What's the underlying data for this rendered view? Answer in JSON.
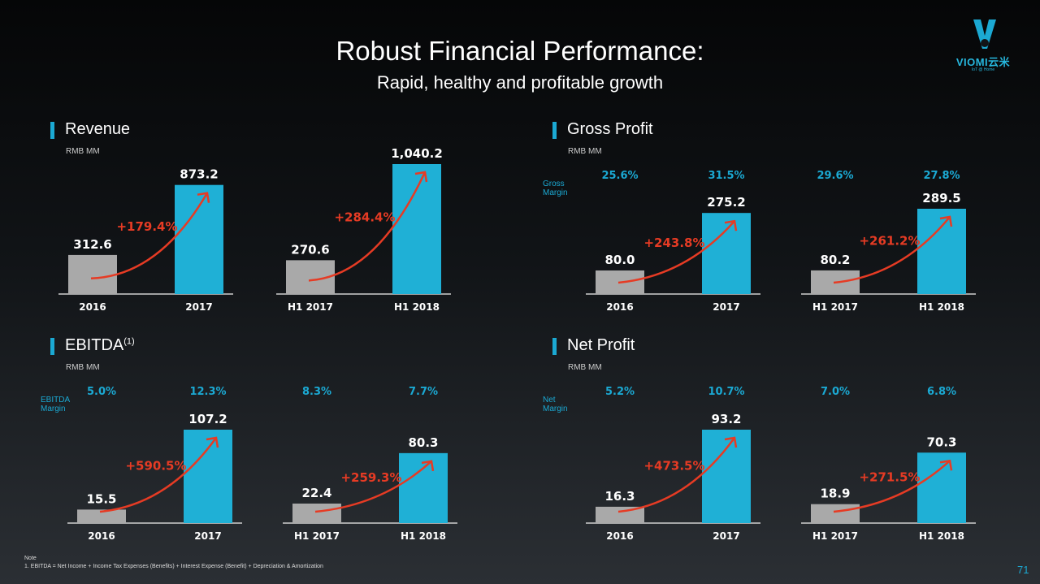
{
  "title": "Robust Financial Performance:",
  "subtitle": "Rapid, healthy and profitable growth",
  "logo": {
    "text": "VIOMI云米",
    "tagline": "IoT @ Home"
  },
  "note": {
    "heading": "Note",
    "text": "1. EBITDA = Net Income + Income Tax Expenses (Benefits) + Interest Expense (Benefit) + Depreciation & Amortization"
  },
  "page_number": "71",
  "colors": {
    "accent": "#1ba9d3",
    "bar_prior": "#a9a9a9",
    "bar_current": "#1fb0d6",
    "growth": "#e63b24"
  },
  "chart_data": [
    {
      "type": "bar",
      "title": "Revenue",
      "title_sup": "",
      "unit": "RMB MM",
      "margin_label": "",
      "margins": [],
      "groups": [
        {
          "categories": [
            "2016",
            "2017"
          ],
          "values": [
            312.6,
            873.2
          ],
          "labels": [
            "312.6",
            "873.2"
          ],
          "growth": "+179.4%"
        },
        {
          "categories": [
            "H1 2017",
            "H1 2018"
          ],
          "values": [
            270.6,
            1040.2
          ],
          "labels": [
            "270.6",
            "1,040.2"
          ],
          "growth": "+284.4%"
        }
      ]
    },
    {
      "type": "bar",
      "title": "Gross Profit",
      "title_sup": "",
      "unit": "RMB MM",
      "margin_label": "Gross Margin",
      "margins": [
        "25.6%",
        "31.5%",
        "29.6%",
        "27.8%"
      ],
      "groups": [
        {
          "categories": [
            "2016",
            "2017"
          ],
          "values": [
            80.0,
            275.2
          ],
          "labels": [
            "80.0",
            "275.2"
          ],
          "growth": "+243.8%"
        },
        {
          "categories": [
            "H1 2017",
            "H1 2018"
          ],
          "values": [
            80.2,
            289.5
          ],
          "labels": [
            "80.2",
            "289.5"
          ],
          "growth": "+261.2%"
        }
      ]
    },
    {
      "type": "bar",
      "title": "EBITDA",
      "title_sup": "(1)",
      "unit": "RMB MM",
      "margin_label": "EBITDA Margin",
      "margins": [
        "5.0%",
        "12.3%",
        "8.3%",
        "7.7%"
      ],
      "groups": [
        {
          "categories": [
            "2016",
            "2017"
          ],
          "values": [
            15.5,
            107.2
          ],
          "labels": [
            "15.5",
            "107.2"
          ],
          "growth": "+590.5%"
        },
        {
          "categories": [
            "H1 2017",
            "H1 2018"
          ],
          "values": [
            22.4,
            80.3
          ],
          "labels": [
            "22.4",
            "80.3"
          ],
          "growth": "+259.3%"
        }
      ]
    },
    {
      "type": "bar",
      "title": "Net Profit",
      "title_sup": "",
      "unit": "RMB MM",
      "margin_label": "Net Margin",
      "margins": [
        "5.2%",
        "10.7%",
        "7.0%",
        "6.8%"
      ],
      "groups": [
        {
          "categories": [
            "2016",
            "2017"
          ],
          "values": [
            16.3,
            93.2
          ],
          "labels": [
            "16.3",
            "93.2"
          ],
          "growth": "+473.5%"
        },
        {
          "categories": [
            "H1 2017",
            "H1 2018"
          ],
          "values": [
            18.9,
            70.3
          ],
          "labels": [
            "18.9",
            "70.3"
          ],
          "growth": "+271.5%"
        }
      ]
    }
  ]
}
